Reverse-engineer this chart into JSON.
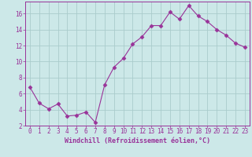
{
  "xlabel": "Windchill (Refroidissement éolien,°C)",
  "x_values": [
    0,
    1,
    2,
    3,
    4,
    5,
    6,
    7,
    8,
    9,
    10,
    11,
    12,
    13,
    14,
    15,
    16,
    17,
    18,
    19,
    20,
    21,
    22,
    23
  ],
  "y_values": [
    6.8,
    4.8,
    4.1,
    4.7,
    3.2,
    3.3,
    3.7,
    2.4,
    7.1,
    9.3,
    10.4,
    12.2,
    13.1,
    14.5,
    14.5,
    16.2,
    15.3,
    17.0,
    15.7,
    15.0,
    14.0,
    13.3,
    12.3,
    11.8
  ],
  "line_color": "#993399",
  "marker": "D",
  "marker_size": 2.5,
  "bg_color": "#cce8e8",
  "grid_color": "#aacccc",
  "axis_color": "#993399",
  "tick_color": "#993399",
  "label_color": "#993399",
  "ylim": [
    2,
    17.5
  ],
  "yticks": [
    2,
    4,
    6,
    8,
    10,
    12,
    14,
    16
  ],
  "xlim": [
    -0.5,
    23.5
  ],
  "tick_fontsize": 5.5,
  "xlabel_fontsize": 6
}
